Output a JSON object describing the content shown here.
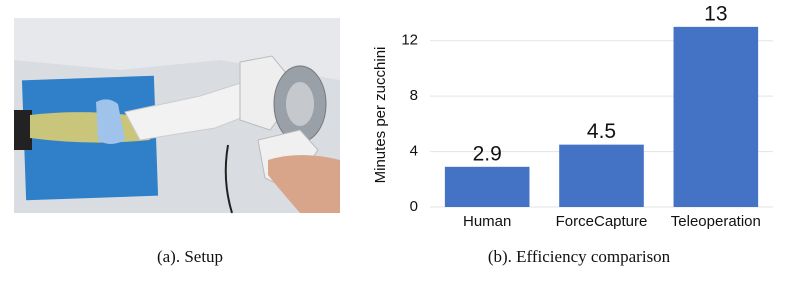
{
  "captions": {
    "left": "(a). Setup",
    "right": "(b). Efficiency comparison"
  },
  "chart_data": {
    "type": "bar",
    "y_label": "Minutes per zucchini",
    "categories": [
      "Human",
      "ForceCapture",
      "Teleoperation"
    ],
    "values": [
      2.9,
      4.5,
      13
    ],
    "color": "#4472c4",
    "ylim": [
      0,
      14
    ],
    "yticks": [
      0,
      4,
      8,
      12
    ],
    "grid": true
  }
}
